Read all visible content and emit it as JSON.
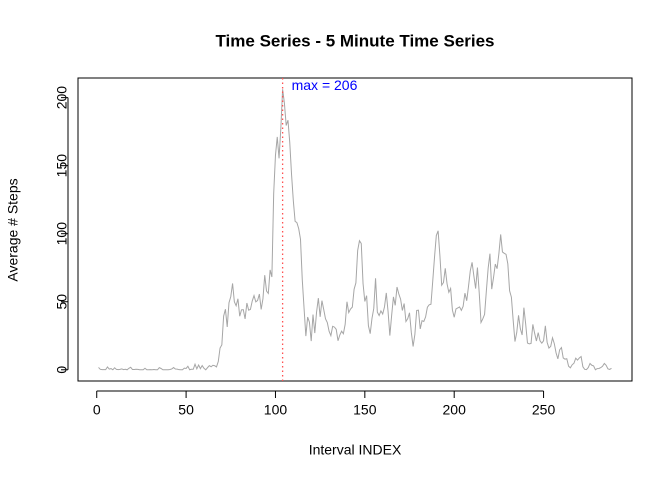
{
  "chart_data": {
    "type": "line",
    "title": "Time Series - 5 Minute Time Series",
    "xlabel": "Interval INDEX",
    "ylabel": "Average # Steps",
    "annotation": "max =  206",
    "color": "#a6a6a6",
    "max_line_color": "#ff5050",
    "annotation_color": "#0000ff",
    "xlim": [
      -10.48,
      299.48
    ],
    "ylim": [
      -8.25,
      214.42
    ],
    "xticks": [
      0,
      50,
      100,
      150,
      200,
      250
    ],
    "yticks": [
      0,
      50,
      100,
      150,
      200
    ],
    "x": [
      1,
      2,
      3,
      4,
      5,
      6,
      7,
      8,
      9,
      10,
      11,
      12,
      13,
      14,
      15,
      16,
      17,
      18,
      19,
      20,
      21,
      22,
      23,
      24,
      25,
      26,
      27,
      28,
      29,
      30,
      31,
      32,
      33,
      34,
      35,
      36,
      37,
      38,
      39,
      40,
      41,
      42,
      43,
      44,
      45,
      46,
      47,
      48,
      49,
      50,
      51,
      52,
      53,
      54,
      55,
      56,
      57,
      58,
      59,
      60,
      61,
      62,
      63,
      64,
      65,
      66,
      67,
      68,
      69,
      70,
      71,
      72,
      73,
      74,
      75,
      76,
      77,
      78,
      79,
      80,
      81,
      82,
      83,
      84,
      85,
      86,
      87,
      88,
      89,
      90,
      91,
      92,
      93,
      94,
      95,
      96,
      97,
      98,
      99,
      100,
      101,
      102,
      103,
      104,
      105,
      106,
      107,
      108,
      109,
      110,
      111,
      112,
      113,
      114,
      115,
      116,
      117,
      118,
      119,
      120,
      121,
      122,
      123,
      124,
      125,
      126,
      127,
      128,
      129,
      130,
      131,
      132,
      133,
      134,
      135,
      136,
      137,
      138,
      139,
      140,
      141,
      142,
      143,
      144,
      145,
      146,
      147,
      148,
      149,
      150,
      151,
      152,
      153,
      154,
      155,
      156,
      157,
      158,
      159,
      160,
      161,
      162,
      163,
      164,
      165,
      166,
      167,
      168,
      169,
      170,
      171,
      172,
      173,
      174,
      175,
      176,
      177,
      178,
      179,
      180,
      181,
      182,
      183,
      184,
      185,
      186,
      187,
      188,
      189,
      190,
      191,
      192,
      193,
      194,
      195,
      196,
      197,
      198,
      199,
      200,
      201,
      202,
      203,
      204,
      205,
      206,
      207,
      208,
      209,
      210,
      211,
      212,
      213,
      214,
      215,
      216,
      217,
      218,
      219,
      220,
      221,
      222,
      223,
      224,
      225,
      226,
      227,
      228,
      229,
      230,
      231,
      232,
      233,
      234,
      235,
      236,
      237,
      238,
      239,
      240,
      241,
      242,
      243,
      244,
      245,
      246,
      247,
      248,
      249,
      250,
      251,
      252,
      253,
      254,
      255,
      256,
      257,
      258,
      259,
      260,
      261,
      262,
      263,
      264,
      265,
      266,
      267,
      268,
      269,
      270,
      271,
      272,
      273,
      274,
      275,
      276,
      277,
      278,
      279,
      280,
      281,
      282,
      283,
      284,
      285,
      286,
      287,
      288
    ],
    "values": [
      1.717,
      0.339,
      0.132,
      0.151,
      0.075,
      2.094,
      0.528,
      0.868,
      0,
      1.472,
      0.302,
      0.132,
      0.321,
      0.679,
      0.151,
      0.34,
      0,
      1.113,
      1.83,
      0.17,
      0.17,
      0.377,
      0.264,
      0,
      0,
      0,
      1.132,
      0,
      0,
      0.132,
      0,
      0.226,
      0,
      0,
      1.547,
      0.943,
      0,
      0,
      0,
      0,
      0.208,
      0.623,
      1.623,
      0.585,
      0.491,
      0.075,
      0,
      0,
      1.189,
      0.943,
      2.566,
      0,
      0.34,
      0.358,
      4.113,
      0.66,
      3.491,
      0.83,
      3.113,
      1.113,
      0,
      1.566,
      3,
      2.245,
      3.321,
      2.962,
      2.094,
      6.057,
      16.019,
      18.34,
      39.453,
      44.491,
      31.491,
      49.264,
      53.774,
      63.453,
      49.962,
      47.076,
      52.151,
      39.34,
      44.019,
      44.17,
      37.358,
      49.038,
      43.811,
      44.377,
      50.509,
      54.509,
      49.925,
      50.981,
      55.679,
      44.321,
      52.264,
      69.547,
      57.849,
      56.151,
      73.377,
      68.208,
      129.434,
      157.528,
      171.151,
      155.396,
      177.302,
      206.17,
      195.925,
      179.566,
      183.396,
      167.019,
      143.453,
      124.038,
      109.113,
      108.113,
      103.717,
      95.962,
      66.208,
      45.226,
      24.792,
      38.755,
      34.981,
      21.057,
      40.566,
      26.981,
      42.415,
      52.66,
      38.925,
      50.792,
      44.283,
      37.415,
      34.698,
      28.34,
      25.094,
      31.943,
      31.358,
      29.679,
      21.321,
      25.547,
      28.377,
      26.472,
      33.434,
      49.981,
      42.038,
      44.604,
      46.038,
      59.189,
      63.868,
      87.698,
      94.849,
      92.774,
      63.396,
      50.17,
      54.472,
      32.415,
      26.528,
      37.736,
      45.057,
      67.283,
      42.34,
      39.887,
      43.264,
      40.981,
      46.245,
      56.434,
      42.755,
      25.132,
      39.962,
      53.547,
      47.321,
      60.811,
      55.755,
      51.962,
      43.585,
      48.698,
      35.472,
      37.547,
      41.849,
      27.509,
      17.113,
      26.075,
      43.623,
      43.774,
      30.019,
      36.075,
      35.491,
      38.849,
      45.962,
      47.755,
      48.132,
      65.321,
      82.906,
      98.66,
      102.113,
      83.962,
      62.132,
      64.132,
      74.547,
      63.17,
      56.906,
      59.774,
      43.868,
      38.566,
      44.66,
      45.453,
      46.208,
      43.679,
      46.623,
      56.302,
      50.717,
      61.226,
      72.717,
      78.943,
      68.943,
      59.66,
      75.094,
      56.509,
      34.774,
      37.453,
      40.679,
      58.019,
      74.698,
      85.321,
      59.264,
      67.774,
      77.698,
      74.245,
      85.34,
      99.453,
      86.585,
      85.604,
      84.868,
      77.83,
      58.038,
      53.358,
      36.321,
      20.717,
      27.396,
      40.019,
      30.208,
      25.547,
      45.66,
      33.528,
      19.623,
      19.019,
      19.34,
      33.34,
      26.811,
      21.17,
      27.302,
      21.34,
      19.547,
      21.321,
      32.302,
      20.151,
      15.943,
      17.226,
      23.453,
      19.245,
      12.453,
      8.019,
      14.66,
      16.302,
      8.679,
      7.792,
      8.132,
      2.623,
      1.453,
      3.679,
      4.811,
      8.509,
      7.075,
      8.698,
      9.755,
      2.208,
      0.321,
      0.113,
      1.604,
      4.604,
      3.302,
      2.849,
      0,
      0.83,
      0.962,
      1.585,
      2.604,
      4.698,
      3.302,
      0.642,
      0.226,
      1.075
    ]
  }
}
